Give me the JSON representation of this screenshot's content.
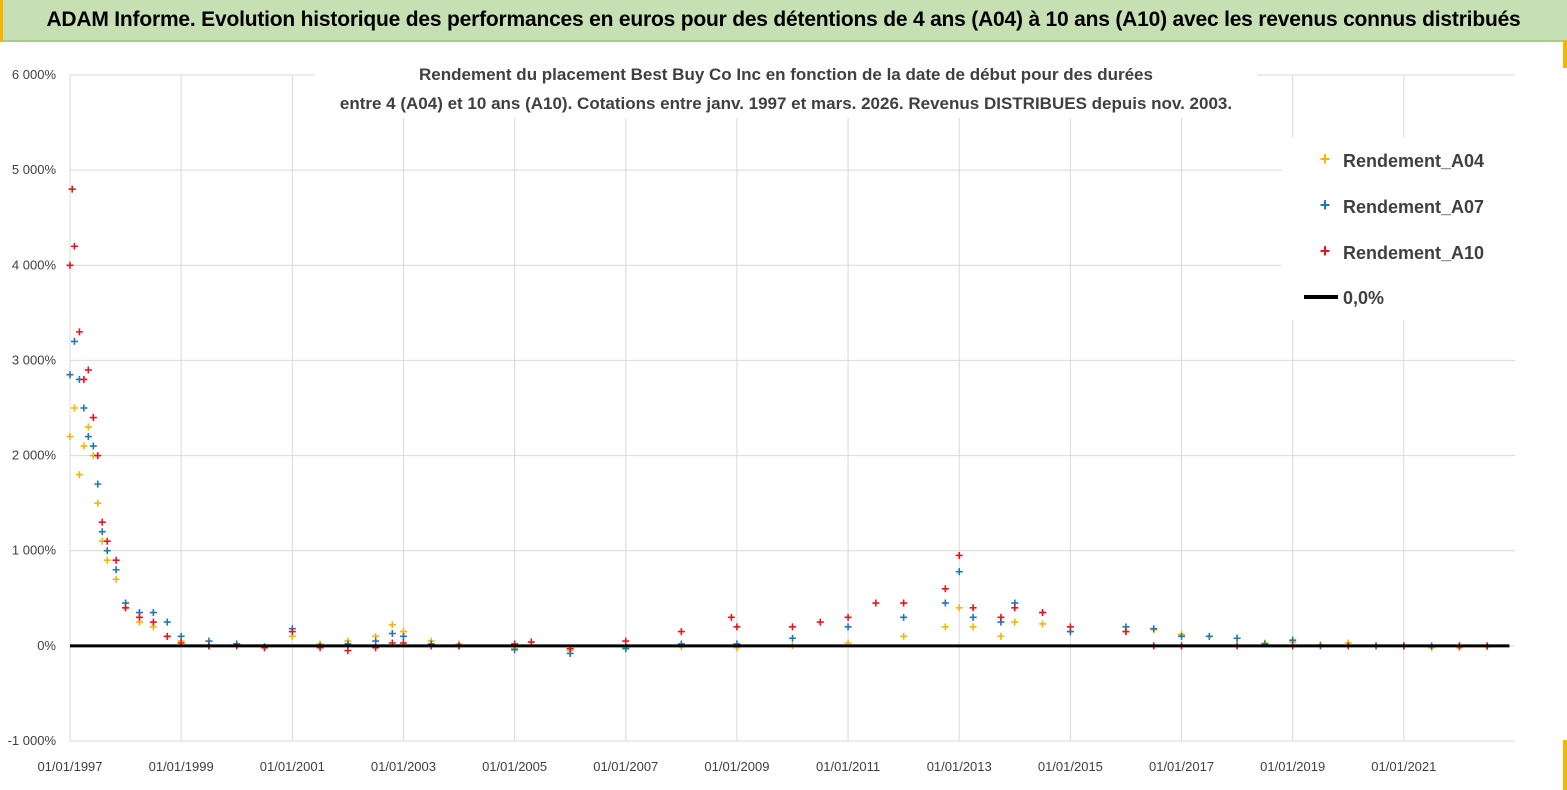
{
  "header": {
    "title": "ADAM Informe. Evolution historique des performances en euros pour des détentions de 4 ans (A04) à 10 ans (A10) avec les revenus connus distribués"
  },
  "chart_data": {
    "type": "scatter",
    "title_lines": [
      "Rendement du placement Best Buy Co Inc en fonction de la date de début pour des durées",
      "entre 4 (A04) et 10 ans (A10).  Cotations entre janv. 1997 et mars. 2026.  Revenus DISTRIBUES depuis nov. 2003."
    ],
    "xlabel": "",
    "ylabel": "",
    "x_range": [
      "01/01/1997",
      "01/01/2023"
    ],
    "ylim": [
      -1000,
      6000
    ],
    "y_ticks": [
      {
        "value": 6000,
        "label": "6 000%"
      },
      {
        "value": 5000,
        "label": "5 000%"
      },
      {
        "value": 4000,
        "label": "4 000%"
      },
      {
        "value": 3000,
        "label": "3 000%"
      },
      {
        "value": 2000,
        "label": "2 000%"
      },
      {
        "value": 1000,
        "label": "1 000%"
      },
      {
        "value": 0,
        "label": "0%"
      },
      {
        "value": -1000,
        "label": "-1 000%"
      }
    ],
    "x_ticks": [
      "01/01/1997",
      "01/01/1999",
      "01/01/2001",
      "01/01/2003",
      "01/01/2005",
      "01/01/2007",
      "01/01/2009",
      "01/01/2011",
      "01/01/2013",
      "01/01/2015",
      "01/01/2017",
      "01/01/2019",
      "01/01/2021"
    ],
    "grid": true,
    "legend_position": "top-right",
    "series": [
      {
        "name": "Rendement_A04",
        "color": "#f2b705",
        "marker": "plus",
        "points": [
          [
            "1997.00",
            2200
          ],
          [
            "1997.08",
            2500
          ],
          [
            "1997.17",
            1800
          ],
          [
            "1997.25",
            2100
          ],
          [
            "1997.33",
            2300
          ],
          [
            "1997.42",
            2000
          ],
          [
            "1997.50",
            1500
          ],
          [
            "1997.58",
            1100
          ],
          [
            "1997.67",
            900
          ],
          [
            "1997.83",
            700
          ],
          [
            "1998.00",
            400
          ],
          [
            "1998.25",
            250
          ],
          [
            "1998.50",
            200
          ],
          [
            "1998.75",
            100
          ],
          [
            "1999.00",
            50
          ],
          [
            "1999.50",
            0
          ],
          [
            "2000.00",
            20
          ],
          [
            "2000.50",
            -20
          ],
          [
            "2001.00",
            100
          ],
          [
            "2001.50",
            20
          ],
          [
            "2002.00",
            50
          ],
          [
            "2002.50",
            100
          ],
          [
            "2002.80",
            220
          ],
          [
            "2003.00",
            150
          ],
          [
            "2003.50",
            50
          ],
          [
            "2004.00",
            20
          ],
          [
            "2005.00",
            -30
          ],
          [
            "2006.00",
            -50
          ],
          [
            "2007.00",
            -20
          ],
          [
            "2008.00",
            -10
          ],
          [
            "2009.00",
            -20
          ],
          [
            "2010.00",
            0
          ],
          [
            "2011.00",
            30
          ],
          [
            "2012.00",
            100
          ],
          [
            "2012.75",
            200
          ],
          [
            "2013.00",
            400
          ],
          [
            "2013.25",
            200
          ],
          [
            "2013.75",
            100
          ],
          [
            "2014.00",
            250
          ],
          [
            "2014.50",
            230
          ],
          [
            "2015.00",
            150
          ],
          [
            "2016.00",
            150
          ],
          [
            "2016.50",
            170
          ],
          [
            "2017.00",
            120
          ],
          [
            "2017.50",
            100
          ],
          [
            "2018.00",
            80
          ],
          [
            "2018.50",
            30
          ],
          [
            "2019.00",
            40
          ],
          [
            "2019.50",
            10
          ],
          [
            "2020.00",
            30
          ],
          [
            "2020.50",
            0
          ],
          [
            "2021.00",
            0
          ],
          [
            "2021.50",
            -20
          ],
          [
            "2022.00",
            -20
          ],
          [
            "2022.50",
            -10
          ]
        ]
      },
      {
        "name": "Rendement_A07",
        "color": "#1f77b4",
        "marker": "plus",
        "points": [
          [
            "1997.00",
            2850
          ],
          [
            "1997.08",
            3200
          ],
          [
            "1997.17",
            2800
          ],
          [
            "1997.25",
            2500
          ],
          [
            "1997.33",
            2200
          ],
          [
            "1997.42",
            2100
          ],
          [
            "1997.50",
            1700
          ],
          [
            "1997.58",
            1200
          ],
          [
            "1997.67",
            1000
          ],
          [
            "1997.83",
            800
          ],
          [
            "1998.00",
            450
          ],
          [
            "1998.25",
            350
          ],
          [
            "1998.50",
            350
          ],
          [
            "1998.75",
            250
          ],
          [
            "1999.00",
            100
          ],
          [
            "1999.50",
            50
          ],
          [
            "2000.00",
            20
          ],
          [
            "2000.50",
            -10
          ],
          [
            "2001.00",
            180
          ],
          [
            "2001.50",
            0
          ],
          [
            "2002.00",
            20
          ],
          [
            "2002.50",
            50
          ],
          [
            "2002.80",
            130
          ],
          [
            "2003.00",
            100
          ],
          [
            "2003.50",
            20
          ],
          [
            "2004.00",
            0
          ],
          [
            "2005.00",
            -40
          ],
          [
            "2006.00",
            -80
          ],
          [
            "2007.00",
            -30
          ],
          [
            "2008.00",
            20
          ],
          [
            "2009.00",
            20
          ],
          [
            "2010.00",
            80
          ],
          [
            "2011.00",
            200
          ],
          [
            "2012.00",
            300
          ],
          [
            "2012.75",
            450
          ],
          [
            "2013.00",
            780
          ],
          [
            "2013.25",
            300
          ],
          [
            "2013.75",
            250
          ],
          [
            "2014.00",
            450
          ],
          [
            "2014.50",
            350
          ],
          [
            "2015.00",
            150
          ],
          [
            "2016.00",
            200
          ],
          [
            "2016.50",
            180
          ],
          [
            "2017.00",
            100
          ],
          [
            "2017.50",
            100
          ],
          [
            "2018.00",
            80
          ],
          [
            "2018.50",
            20
          ],
          [
            "2019.00",
            60
          ],
          [
            "2019.50",
            0
          ],
          [
            "2020.00",
            0
          ],
          [
            "2020.50",
            0
          ],
          [
            "2021.00",
            0
          ],
          [
            "2021.50",
            0
          ],
          [
            "2022.00",
            0
          ],
          [
            "2022.50",
            0
          ]
        ]
      },
      {
        "name": "Rendement_A10",
        "color": "#e8141c",
        "marker": "plus",
        "points": [
          [
            "1997.00",
            4000
          ],
          [
            "1997.04",
            4800
          ],
          [
            "1997.08",
            4200
          ],
          [
            "1997.17",
            3300
          ],
          [
            "1997.25",
            2800
          ],
          [
            "1997.33",
            2900
          ],
          [
            "1997.42",
            2400
          ],
          [
            "1997.50",
            2000
          ],
          [
            "1997.58",
            1300
          ],
          [
            "1997.67",
            1100
          ],
          [
            "1997.83",
            900
          ],
          [
            "1998.00",
            400
          ],
          [
            "1998.25",
            300
          ],
          [
            "1998.50",
            250
          ],
          [
            "1998.75",
            100
          ],
          [
            "1999.00",
            30
          ],
          [
            "1999.50",
            0
          ],
          [
            "2000.00",
            0
          ],
          [
            "2000.50",
            -20
          ],
          [
            "2001.00",
            150
          ],
          [
            "2001.50",
            -20
          ],
          [
            "2002.00",
            -50
          ],
          [
            "2002.50",
            -20
          ],
          [
            "2002.80",
            30
          ],
          [
            "2003.00",
            30
          ],
          [
            "2003.50",
            0
          ],
          [
            "2004.00",
            0
          ],
          [
            "2005.00",
            20
          ],
          [
            "2005.30",
            40
          ],
          [
            "2006.00",
            -30
          ],
          [
            "2007.00",
            50
          ],
          [
            "2008.00",
            150
          ],
          [
            "2008.90",
            300
          ],
          [
            "2009.00",
            200
          ],
          [
            "2010.00",
            200
          ],
          [
            "2010.50",
            250
          ],
          [
            "2011.00",
            300
          ],
          [
            "2011.50",
            450
          ],
          [
            "2012.00",
            450
          ],
          [
            "2012.75",
            600
          ],
          [
            "2013.00",
            950
          ],
          [
            "2013.25",
            400
          ],
          [
            "2013.75",
            300
          ],
          [
            "2014.00",
            400
          ],
          [
            "2014.50",
            350
          ],
          [
            "2015.00",
            200
          ],
          [
            "2016.00",
            150
          ],
          [
            "2016.50",
            0
          ],
          [
            "2017.00",
            0
          ],
          [
            "2018.00",
            0
          ],
          [
            "2019.00",
            0
          ],
          [
            "2020.00",
            0
          ],
          [
            "2021.00",
            0
          ],
          [
            "2022.00",
            0
          ],
          [
            "2022.50",
            0
          ]
        ]
      },
      {
        "name": "0,0%",
        "color": "#000000",
        "marker": "line",
        "points": [
          [
            "1997.00",
            0
          ],
          [
            "2022.90",
            0
          ]
        ]
      }
    ]
  }
}
